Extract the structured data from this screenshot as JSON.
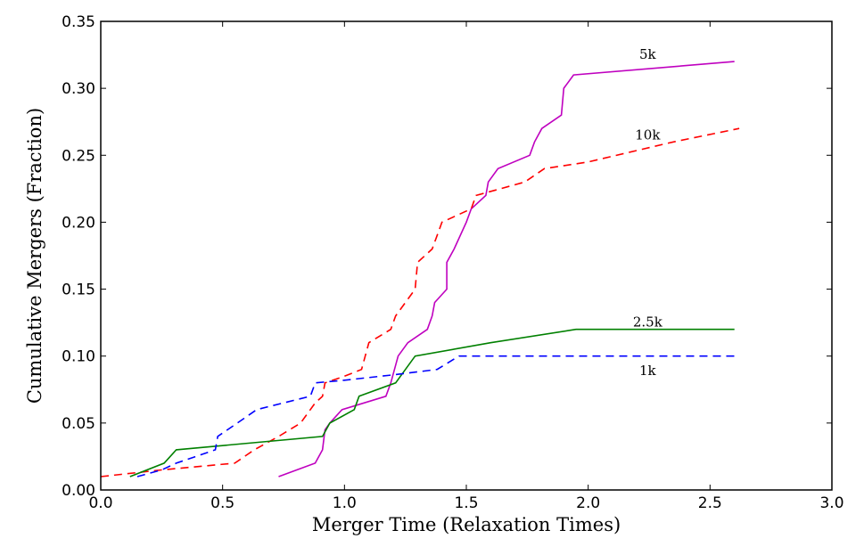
{
  "chart_data": {
    "type": "line",
    "title": "",
    "xlabel": "Merger Time (Relaxation Times)",
    "ylabel": "Cumulative Mergers (Fraction)",
    "xlim": [
      0.0,
      3.0
    ],
    "ylim": [
      0.0,
      0.35
    ],
    "xticks": [
      "0.0",
      "0.5",
      "1.0",
      "1.5",
      "2.0",
      "2.5",
      "3.0"
    ],
    "yticks": [
      "0.00",
      "0.05",
      "0.10",
      "0.15",
      "0.20",
      "0.25",
      "0.30",
      "0.35"
    ],
    "grid": false,
    "series": [
      {
        "name": "5k",
        "color": "#bf00bf",
        "style": "solid",
        "label_at": [
          2.2,
          0.322
        ],
        "x": [
          0.73,
          0.88,
          0.91,
          0.92,
          0.94,
          0.99,
          1.17,
          1.19,
          1.22,
          1.26,
          1.34,
          1.36,
          1.37,
          1.42,
          1.42,
          1.45,
          1.5,
          1.52,
          1.58,
          1.59,
          1.63,
          1.76,
          1.78,
          1.81,
          1.89,
          1.9,
          1.94,
          2.6
        ],
        "y": [
          0.01,
          0.02,
          0.03,
          0.045,
          0.05,
          0.06,
          0.07,
          0.08,
          0.1,
          0.11,
          0.12,
          0.13,
          0.14,
          0.15,
          0.17,
          0.18,
          0.2,
          0.21,
          0.22,
          0.23,
          0.24,
          0.25,
          0.26,
          0.27,
          0.28,
          0.3,
          0.31,
          0.32
        ]
      },
      {
        "name": "10k",
        "color": "#ff0000",
        "style": "dashed",
        "label_at": [
          2.2,
          0.262
        ],
        "x": [
          0.0,
          0.15,
          0.25,
          0.55,
          0.63,
          0.73,
          0.82,
          0.88,
          0.91,
          0.92,
          1.0,
          1.07,
          1.1,
          1.19,
          1.21,
          1.27,
          1.29,
          1.3,
          1.36,
          1.4,
          1.52,
          1.54,
          1.74,
          1.82,
          2.0,
          2.35,
          2.62
        ],
        "y": [
          0.01,
          0.013,
          0.015,
          0.02,
          0.03,
          0.04,
          0.05,
          0.065,
          0.07,
          0.08,
          0.085,
          0.09,
          0.11,
          0.12,
          0.13,
          0.145,
          0.15,
          0.17,
          0.18,
          0.2,
          0.21,
          0.22,
          0.23,
          0.24,
          0.245,
          0.26,
          0.27
        ]
      },
      {
        "name": "2.5k",
        "color": "#008000",
        "style": "solid",
        "label_at": [
          2.2,
          0.122
        ],
        "x": [
          0.12,
          0.26,
          0.31,
          0.91,
          0.94,
          1.04,
          1.06,
          1.21,
          1.25,
          1.29,
          1.6,
          1.95,
          2.6
        ],
        "y": [
          0.01,
          0.02,
          0.03,
          0.04,
          0.05,
          0.06,
          0.07,
          0.08,
          0.09,
          0.1,
          0.11,
          0.12,
          0.12
        ]
      },
      {
        "name": "1k",
        "color": "#0000ff",
        "style": "dashed",
        "label_at": [
          2.2,
          0.086
        ],
        "x": [
          0.15,
          0.25,
          0.31,
          0.47,
          0.48,
          0.56,
          0.64,
          0.86,
          0.88,
          1.0,
          1.2,
          1.38,
          1.47,
          2.6
        ],
        "y": [
          0.01,
          0.015,
          0.02,
          0.03,
          0.04,
          0.05,
          0.06,
          0.07,
          0.08,
          0.082,
          0.086,
          0.09,
          0.1,
          0.1
        ]
      }
    ]
  }
}
